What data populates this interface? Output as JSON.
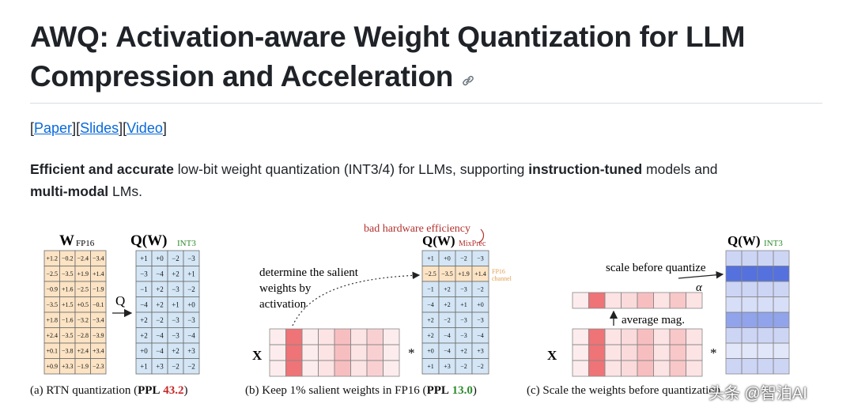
{
  "page": {
    "title_line1": "AWQ: Activation-aware Weight Quantization for LLM",
    "title_line2": "Compression and Acceleration",
    "links": [
      {
        "label": "Paper"
      },
      {
        "label": "Slides"
      },
      {
        "label": "Video"
      }
    ],
    "description": {
      "p1_bold": "Efficient and accurate",
      "p2": " low-bit weight quantization (INT3/4) for LLMs, supporting ",
      "p3_bold": "instruction-tuned",
      "p4": " models and ",
      "p5_bold": "multi-modal",
      "p6": " LMs."
    },
    "watermark": "头条 @智泊AI"
  },
  "figure": {
    "panel_a": {
      "w_label": "W",
      "w_sub": "FP16",
      "q_label": "Q(W)",
      "q_sub": "INT3",
      "arrow_label": "Q",
      "fp16_rows": [
        [
          "+1.2",
          "−0.2",
          "−2.4",
          "−3.4"
        ],
        [
          "−2.5",
          "−3.5",
          "+1.9",
          "+1.4"
        ],
        [
          "−0.9",
          "+1.6",
          "−2.5",
          "−1.9"
        ],
        [
          "−3.5",
          "+1.5",
          "+0.5",
          "−0.1"
        ],
        [
          "+1.8",
          "−1.6",
          "−3.2",
          "−3.4"
        ],
        [
          "+2.4",
          "−3.5",
          "−2.8",
          "−3.9"
        ],
        [
          "+0.1",
          "−3.8",
          "+2.4",
          "+3.4"
        ],
        [
          "+0.9",
          "+3.3",
          "−1.9",
          "−2.3"
        ]
      ],
      "int3_rows": [
        [
          "+1",
          "+0",
          "−2",
          "−3"
        ],
        [
          "−3",
          "−4",
          "+2",
          "+1"
        ],
        [
          "−1",
          "+2",
          "−3",
          "−2"
        ],
        [
          "−4",
          "+2",
          "+1",
          "+0"
        ],
        [
          "+2",
          "−2",
          "−3",
          "−3"
        ],
        [
          "+2",
          "−4",
          "−3",
          "−4"
        ],
        [
          "+0",
          "−4",
          "+2",
          "+3"
        ],
        [
          "+1",
          "+3",
          "−2",
          "−2"
        ]
      ],
      "caption_pre": "(a) RTN quantization (",
      "caption_ppl": "PPL",
      "caption_val": "43.2",
      "caption_post": ")"
    },
    "panel_b": {
      "top_note": "bad hardware efficiency",
      "q_label": "Q(W)",
      "q_sub": "MixPrec",
      "salient_text": [
        "determine the salient",
        "weights by",
        "activation"
      ],
      "x_label": "X",
      "times": "*",
      "fp16_tag": [
        "FP16",
        "channel"
      ],
      "rows": [
        [
          "+1",
          "+0",
          "−2",
          "−3"
        ],
        [
          "−2.5",
          "−3.5",
          "+1.9",
          "+1.4"
        ],
        [
          "−1",
          "+2",
          "−3",
          "−2"
        ],
        [
          "−4",
          "+2",
          "+1",
          "+0"
        ],
        [
          "+2",
          "−2",
          "−3",
          "−3"
        ],
        [
          "+2",
          "−4",
          "−3",
          "−4"
        ],
        [
          "+0",
          "−4",
          "+2",
          "+3"
        ],
        [
          "+1",
          "+3",
          "−2",
          "−2"
        ]
      ],
      "activation_levels": [
        0.1,
        0.75,
        0.1,
        0.15,
        0.35,
        0.15,
        0.25,
        0.1
      ],
      "caption_pre": "(b) Keep 1% salient weights in FP16 (",
      "caption_ppl": "PPL",
      "caption_val": "13.0",
      "caption_post": ")"
    },
    "panel_c": {
      "q_label": "Q(W)",
      "q_sub": "INT3",
      "scale_text": "scale before quantize",
      "alpha": "α",
      "avg_text": "average mag.",
      "x_label": "X",
      "times": "*",
      "activation_levels": [
        0.1,
        0.75,
        0.15,
        0.2,
        0.35,
        0.15,
        0.3,
        0.15
      ],
      "row_levels": [
        0.25,
        0.85,
        0.25,
        0.2,
        0.55,
        0.25,
        0.15,
        0.25
      ],
      "caption": "(c) Scale the weights before quantization"
    }
  },
  "colors": {
    "link": "#0969da",
    "fp16_cell": "#fbe3c4",
    "int3_cell": "#d4e6f5",
    "activation_strong": "#e8454a",
    "scale_strong": "#3658d8",
    "ppl_red": "#c62828",
    "ppl_green": "#2e8b2e"
  }
}
